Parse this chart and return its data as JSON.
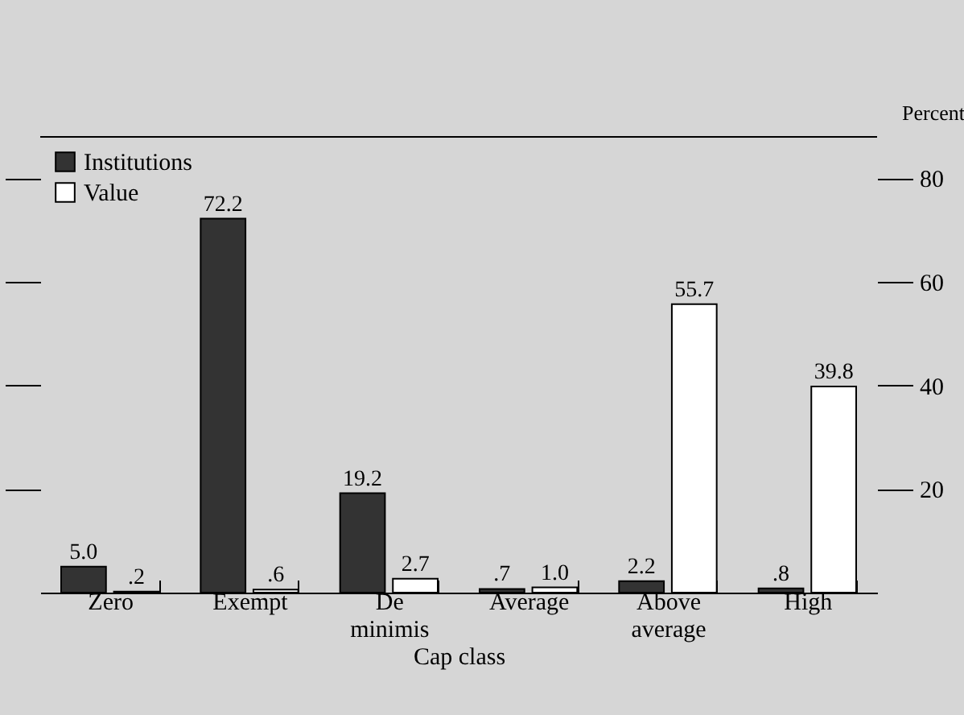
{
  "chart_data": {
    "type": "bar",
    "xlabel": "Cap class",
    "ylabel": "Percent",
    "categories": [
      "Zero",
      "Exempt",
      "De minimis",
      "Average",
      "Above average",
      "High"
    ],
    "series": [
      {
        "name": "Institutions",
        "color": "#333333",
        "values": [
          5.0,
          72.2,
          19.2,
          0.7,
          2.2,
          0.8
        ],
        "value_labels": [
          "5.0",
          "72.2",
          "19.2",
          ".7",
          "2.2",
          ".8"
        ]
      },
      {
        "name": "Value",
        "color": "#ffffff",
        "values": [
          0.2,
          0.6,
          2.7,
          1.0,
          55.7,
          39.8
        ],
        "value_labels": [
          ".2",
          ".6",
          "2.7",
          "1.0",
          "55.7",
          "39.8"
        ]
      }
    ],
    "ylim": [
      0,
      88
    ],
    "yticks": [
      20,
      40,
      60,
      80
    ],
    "grid": false,
    "legend": "top left"
  }
}
